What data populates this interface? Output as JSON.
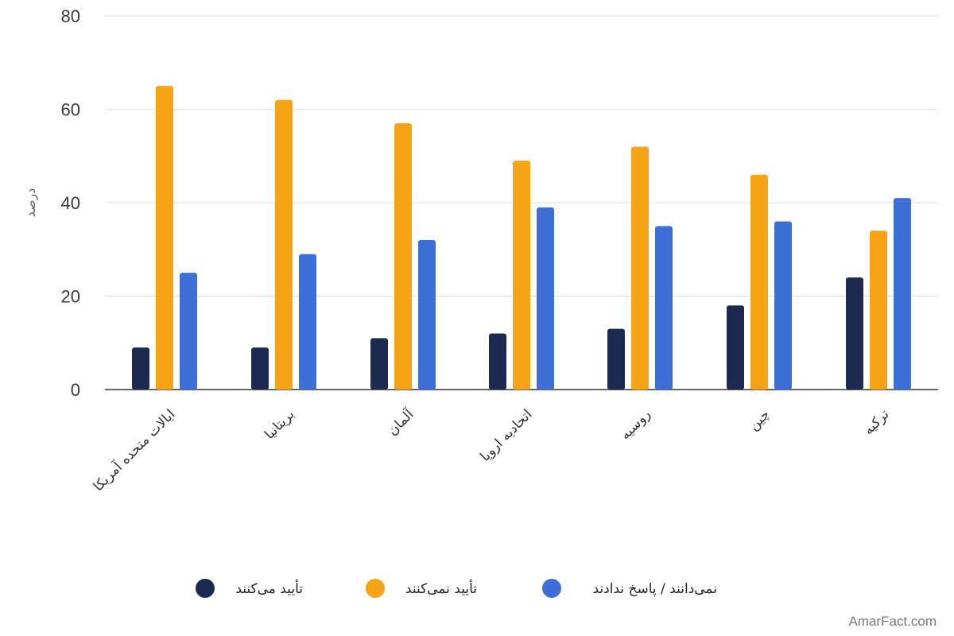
{
  "chart_data": {
    "type": "bar",
    "title": "",
    "xlabel": "",
    "ylabel": "درصد",
    "ylim": [
      0,
      80
    ],
    "yticks": [
      0,
      20,
      40,
      60,
      80
    ],
    "grid": true,
    "legend_position": "bottom",
    "categories": [
      "ایالات متحده آمریکا",
      "بریتانیا",
      "آلمان",
      "اتحادیه اروپا",
      "روسیه",
      "چین",
      "ترکیه"
    ],
    "series": [
      {
        "name": "تأیید می‌کنند",
        "color": "#1b2a4e",
        "values": [
          9,
          9,
          11,
          12,
          13,
          18,
          24
        ]
      },
      {
        "name": "تأیید نمی‌کنند",
        "color": "#f6a316",
        "values": [
          65,
          62,
          57,
          49,
          52,
          46,
          34
        ]
      },
      {
        "name": "نمی‌دانند / پاسخ ندادند",
        "color": "#3d6fd6",
        "values": [
          25,
          29,
          32,
          39,
          35,
          36,
          41
        ]
      }
    ]
  },
  "watermark": "AmarFact.com"
}
